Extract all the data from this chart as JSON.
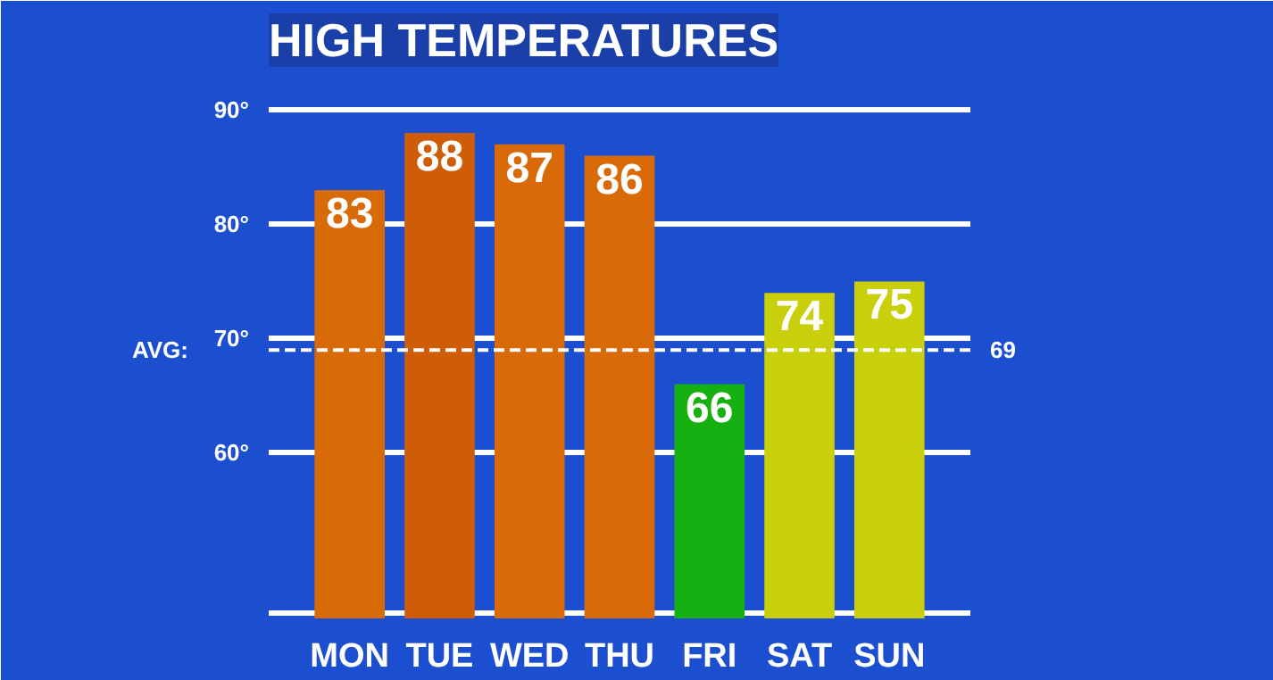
{
  "chart_data": {
    "type": "bar",
    "title": "HIGH TEMPERATURES",
    "categories": [
      "MON",
      "TUE",
      "WED",
      "THU",
      "FRI",
      "SAT",
      "SUN"
    ],
    "values": [
      83,
      88,
      87,
      86,
      66,
      74,
      75
    ],
    "colors": [
      "#d96a08",
      "#cf5c06",
      "#d96a08",
      "#d96a08",
      "#17b012",
      "#c9cf0a",
      "#c9cf0a"
    ],
    "data_labels": true,
    "ylim": [
      45.5,
      93
    ],
    "yticks": [
      {
        "value": 46,
        "label": null
      },
      {
        "value": 60,
        "label": "60°"
      },
      {
        "value": 70,
        "label": "70°"
      },
      {
        "value": 80,
        "label": "80°"
      },
      {
        "value": 90,
        "label": "90°"
      }
    ],
    "grid": "y",
    "annotations": [
      "69"
    ],
    "ref_lines": [
      {
        "axis": "y",
        "value": 69,
        "label": "AVG:",
        "line_style": "dashed",
        "color": "#ffffff"
      }
    ]
  }
}
